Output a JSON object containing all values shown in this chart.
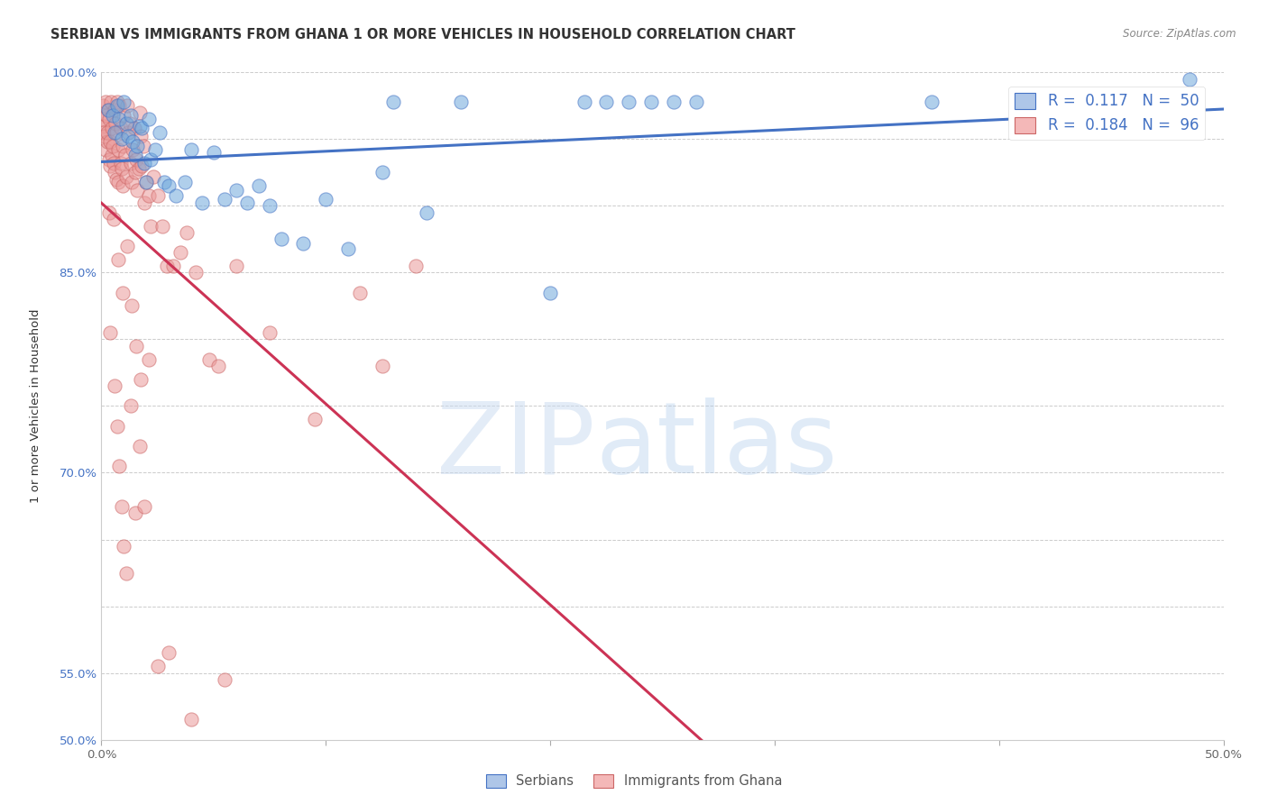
{
  "title": "SERBIAN VS IMMIGRANTS FROM GHANA 1 OR MORE VEHICLES IN HOUSEHOLD CORRELATION CHART",
  "source": "Source: ZipAtlas.com",
  "ylabel": "1 or more Vehicles in Household",
  "xlim": [
    0.0,
    50.0
  ],
  "ylim": [
    50.0,
    100.0
  ],
  "ytick_vals": [
    50.0,
    55.0,
    60.0,
    65.0,
    70.0,
    75.0,
    80.0,
    85.0,
    90.0,
    95.0,
    100.0
  ],
  "xtick_vals": [
    0.0,
    10.0,
    20.0,
    30.0,
    40.0,
    50.0
  ],
  "ytick_display": {
    "50.0": "50.0%",
    "55.0": "55.0%",
    "70.0": "70.0%",
    "85.0": "85.0%",
    "100.0": "100.0%"
  },
  "xtick_display": {
    "0.0": "0.0%",
    "50.0": "50.0%"
  },
  "blue_line_color": "#4472c4",
  "pink_line_color": "#cc3355",
  "scatter_blue_facecolor": "#6fa8dc",
  "scatter_blue_edgecolor": "#4472c4",
  "scatter_pink_facecolor": "#ea9999",
  "scatter_pink_edgecolor": "#cc6666",
  "title_fontsize": 10.5,
  "axis_label_fontsize": 9.5,
  "tick_fontsize": 9.5,
  "legend_fontsize": 12,
  "blue_x": [
    0.3,
    0.5,
    0.6,
    0.7,
    0.8,
    0.9,
    1.0,
    1.1,
    1.2,
    1.3,
    1.4,
    1.5,
    1.6,
    1.7,
    1.8,
    1.9,
    2.0,
    2.1,
    2.2,
    2.4,
    2.6,
    2.8,
    3.0,
    3.3,
    3.7,
    4.0,
    4.5,
    5.0,
    5.5,
    6.0,
    6.5,
    7.0,
    7.5,
    8.0,
    9.0,
    10.0,
    11.0,
    12.5,
    14.5,
    20.0,
    21.5,
    22.5,
    23.5,
    24.5,
    25.5,
    26.5,
    37.0,
    48.5,
    13.0,
    16.0
  ],
  "blue_y": [
    97.2,
    96.8,
    95.5,
    97.5,
    96.5,
    95.0,
    97.8,
    96.2,
    95.2,
    96.8,
    94.8,
    93.8,
    94.5,
    96.0,
    95.8,
    93.2,
    91.8,
    96.5,
    93.5,
    94.2,
    95.5,
    91.8,
    91.5,
    90.8,
    91.8,
    94.2,
    90.2,
    94.0,
    90.5,
    91.2,
    90.2,
    91.5,
    90.0,
    87.5,
    87.2,
    90.5,
    86.8,
    92.5,
    89.5,
    83.5,
    97.8,
    97.8,
    97.8,
    97.8,
    97.8,
    97.8,
    97.8,
    99.5,
    97.8,
    97.8
  ],
  "pink_x": [
    0.05,
    0.08,
    0.1,
    0.12,
    0.15,
    0.18,
    0.2,
    0.22,
    0.25,
    0.28,
    0.3,
    0.33,
    0.35,
    0.38,
    0.4,
    0.42,
    0.45,
    0.48,
    0.5,
    0.55,
    0.58,
    0.6,
    0.63,
    0.65,
    0.68,
    0.7,
    0.73,
    0.75,
    0.8,
    0.85,
    0.88,
    0.9,
    0.93,
    0.95,
    1.0,
    1.05,
    1.1,
    1.15,
    1.2,
    1.25,
    1.3,
    1.35,
    1.4,
    1.45,
    1.5,
    1.55,
    1.6,
    1.65,
    1.7,
    1.75,
    1.8,
    1.85,
    1.9,
    2.0,
    2.1,
    2.2,
    2.3,
    2.5,
    2.7,
    2.9,
    3.2,
    3.5,
    3.8,
    4.2,
    4.8,
    5.2,
    6.0,
    7.5,
    9.5,
    11.5,
    12.5,
    14.0,
    0.4,
    0.6,
    0.7,
    0.8,
    0.9,
    1.0,
    1.1,
    1.3,
    1.5,
    1.7,
    1.9,
    2.1,
    0.35,
    0.55,
    0.75,
    0.95,
    1.15,
    1.35,
    1.55,
    1.75,
    2.5,
    3.0,
    4.0,
    5.5
  ],
  "pink_y": [
    97.5,
    96.5,
    96.0,
    95.5,
    95.2,
    97.8,
    94.2,
    96.8,
    94.8,
    95.5,
    97.2,
    93.5,
    96.5,
    93.0,
    94.8,
    97.8,
    95.8,
    93.8,
    94.5,
    93.2,
    97.2,
    92.5,
    96.2,
    92.0,
    95.5,
    97.8,
    94.2,
    91.8,
    97.5,
    93.2,
    95.8,
    92.8,
    94.5,
    91.5,
    96.8,
    93.8,
    92.2,
    97.5,
    95.5,
    96.2,
    93.2,
    91.8,
    94.2,
    95.8,
    92.5,
    93.5,
    91.2,
    92.8,
    97.0,
    95.2,
    93.0,
    94.5,
    90.2,
    91.8,
    90.8,
    88.5,
    92.2,
    90.8,
    88.5,
    85.5,
    85.5,
    86.5,
    88.0,
    85.0,
    78.5,
    78.0,
    85.5,
    80.5,
    74.0,
    83.5,
    78.0,
    85.5,
    80.5,
    76.5,
    73.5,
    70.5,
    67.5,
    64.5,
    62.5,
    75.0,
    67.0,
    72.0,
    67.5,
    78.5,
    89.5,
    89.0,
    86.0,
    83.5,
    87.0,
    82.5,
    79.5,
    77.0,
    55.5,
    56.5,
    51.5,
    54.5
  ]
}
